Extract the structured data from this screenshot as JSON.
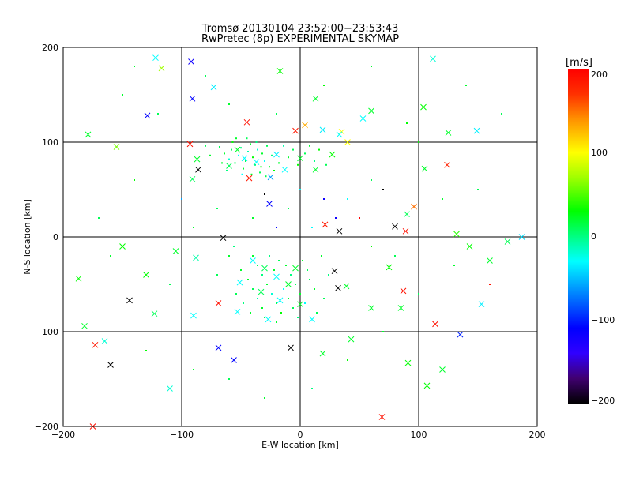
{
  "chart_data": {
    "type": "scatter",
    "title": "Tromsø 20130104 23:52:00−23:53:43",
    "subtitle": "RwPretec (8p) EXPERIMENTAL SKYMAP",
    "xlabel": "E-W location [km]",
    "ylabel": "N-S location [km]",
    "xlim": [
      -200,
      200
    ],
    "ylim": [
      -200,
      200
    ],
    "xticks": [
      "−200",
      "−100",
      "0",
      "100",
      "200"
    ],
    "yticks": [
      "−200",
      "−100",
      "0",
      "100",
      "200"
    ],
    "xtick_values": [
      -200,
      -100,
      0,
      100,
      200
    ],
    "ytick_values": [
      -200,
      -100,
      0,
      100,
      200
    ],
    "grid": true,
    "colorbar": {
      "label": "[m/s]",
      "range": [
        -200,
        200
      ],
      "ticks": [
        "200",
        "100",
        "0",
        "−100",
        "−200"
      ],
      "tick_values": [
        200,
        100,
        0,
        -100,
        -200
      ],
      "stops": [
        [
          -200,
          "#000000"
        ],
        [
          -170,
          "#400070"
        ],
        [
          -140,
          "#3000ff"
        ],
        [
          -110,
          "#0000ff"
        ],
        [
          -60,
          "#00a0ff"
        ],
        [
          -30,
          "#00ffff"
        ],
        [
          0,
          "#00ff80"
        ],
        [
          30,
          "#00ff00"
        ],
        [
          70,
          "#a0ff00"
        ],
        [
          100,
          "#ffff00"
        ],
        [
          140,
          "#ff9000"
        ],
        [
          170,
          "#ff3000"
        ],
        [
          200,
          "#ff0000"
        ]
      ]
    },
    "series": [
      {
        "name": "large markers (x, y, velocity)",
        "marker": "x",
        "points": [
          [
            -122,
            189,
            -30
          ],
          [
            -92,
            185,
            -120
          ],
          [
            -117,
            178,
            70
          ],
          [
            -129,
            128,
            -110
          ],
          [
            -91,
            146,
            -110
          ],
          [
            -73,
            158,
            -35
          ],
          [
            -179,
            108,
            20
          ],
          [
            -155,
            95,
            60
          ],
          [
            -93,
            98,
            190
          ],
          [
            -87,
            82,
            20
          ],
          [
            -86,
            71,
            -200
          ],
          [
            -91,
            61,
            10
          ],
          [
            -45,
            121,
            190
          ],
          [
            -4,
            112,
            185
          ],
          [
            4,
            118,
            130
          ],
          [
            19,
            113,
            -35
          ],
          [
            35,
            111,
            100
          ],
          [
            -43,
            62,
            185
          ],
          [
            -26,
            35,
            -110
          ],
          [
            -25,
            63,
            -60
          ],
          [
            0,
            83,
            20
          ],
          [
            80,
            11,
            -200
          ],
          [
            89,
            6,
            190
          ],
          [
            33,
            6,
            -200
          ],
          [
            21,
            13,
            185
          ],
          [
            105,
            72,
            20
          ],
          [
            90,
            24,
            10
          ],
          [
            112,
            188,
            -20
          ],
          [
            104,
            137,
            30
          ],
          [
            125,
            110,
            20
          ],
          [
            124,
            76,
            180
          ],
          [
            96,
            32,
            150
          ],
          [
            149,
            112,
            -35
          ],
          [
            187,
            0,
            -40
          ],
          [
            143,
            -10,
            30
          ],
          [
            132,
            3,
            40
          ],
          [
            -144,
            -67,
            -200
          ],
          [
            -173,
            -114,
            185
          ],
          [
            -160,
            -135,
            -200
          ],
          [
            -175,
            -200,
            190
          ],
          [
            -182,
            -94,
            20
          ],
          [
            -187,
            -44,
            30
          ],
          [
            -123,
            -81,
            10
          ],
          [
            -105,
            -15,
            20
          ],
          [
            -65,
            -1,
            -200
          ],
          [
            -88,
            -22,
            -10
          ],
          [
            -69,
            -70,
            190
          ],
          [
            -51,
            -48,
            -30
          ],
          [
            -69,
            -117,
            -110
          ],
          [
            -56,
            -130,
            -110
          ],
          [
            -8,
            -117,
            -200
          ],
          [
            29,
            -36,
            -200
          ],
          [
            32,
            -54,
            -200
          ],
          [
            39,
            -52,
            20
          ],
          [
            87,
            -57,
            190
          ],
          [
            114,
            -92,
            190
          ],
          [
            135,
            -103,
            -100
          ],
          [
            153,
            -71,
            -35
          ],
          [
            75,
            -32,
            30
          ],
          [
            85,
            -75,
            20
          ],
          [
            91,
            -133,
            30
          ],
          [
            107,
            -157,
            30
          ],
          [
            69,
            -190,
            190
          ],
          [
            19,
            -123,
            20
          ],
          [
            -4,
            -33,
            20
          ],
          [
            -17,
            -67,
            -30
          ],
          [
            -33,
            -58,
            10
          ],
          [
            0,
            -71,
            20
          ],
          [
            -40,
            -25,
            -30
          ],
          [
            -47,
            83,
            -30
          ],
          [
            -53,
            92,
            20
          ],
          [
            -37,
            79,
            -30
          ],
          [
            -60,
            75,
            10
          ],
          [
            -20,
            87,
            -35
          ],
          [
            -13,
            71,
            -30
          ],
          [
            13,
            71,
            20
          ],
          [
            27,
            87,
            30
          ],
          [
            40,
            100,
            100
          ],
          [
            53,
            125,
            -30
          ],
          [
            60,
            133,
            20
          ],
          [
            13,
            146,
            20
          ],
          [
            -17,
            175,
            30
          ],
          [
            33,
            108,
            -30
          ],
          [
            -90,
            -83,
            -30
          ],
          [
            -27,
            -87,
            -30
          ],
          [
            43,
            -108,
            20
          ],
          [
            60,
            -75,
            20
          ],
          [
            10,
            -87,
            -30
          ],
          [
            -53,
            -79,
            -30
          ],
          [
            -20,
            -42,
            -30
          ],
          [
            -10,
            -50,
            20
          ],
          [
            -30,
            -33,
            10
          ],
          [
            -150,
            -10,
            30
          ],
          [
            -165,
            -110,
            -20
          ],
          [
            160,
            -25,
            20
          ],
          [
            175,
            -5,
            10
          ],
          [
            120,
            -140,
            20
          ],
          [
            -110,
            -160,
            -20
          ],
          [
            -130,
            -40,
            30
          ]
        ]
      },
      {
        "name": "small markers (x, y, velocity)",
        "marker": "dot",
        "points": [
          [
            -68,
            95,
            10
          ],
          [
            -64,
            88,
            20
          ],
          [
            -60,
            82,
            -20
          ],
          [
            -57,
            100,
            30
          ],
          [
            -55,
            78,
            10
          ],
          [
            -52,
            86,
            -30
          ],
          [
            -50,
            94,
            0
          ],
          [
            -48,
            72,
            20
          ],
          [
            -46,
            80,
            10
          ],
          [
            -44,
            90,
            -10
          ],
          [
            -42,
            98,
            20
          ],
          [
            -40,
            84,
            30
          ],
          [
            -38,
            76,
            0
          ],
          [
            -36,
            92,
            -20
          ],
          [
            -34,
            68,
            10
          ],
          [
            -32,
            88,
            20
          ],
          [
            -30,
            80,
            -30
          ],
          [
            -28,
            96,
            10
          ],
          [
            -26,
            74,
            20
          ],
          [
            -24,
            86,
            0
          ],
          [
            -22,
            70,
            30
          ],
          [
            -66,
            78,
            20
          ],
          [
            -62,
            70,
            0
          ],
          [
            -58,
            92,
            10
          ],
          [
            -54,
            104,
            20
          ],
          [
            -49,
            66,
            -30
          ],
          [
            -45,
            104,
            10
          ],
          [
            -41,
            66,
            20
          ],
          [
            -37,
            100,
            0
          ],
          [
            -33,
            74,
            30
          ],
          [
            -29,
            64,
            10
          ],
          [
            -18,
            78,
            20
          ],
          [
            -14,
            96,
            -10
          ],
          [
            -10,
            84,
            20
          ],
          [
            -6,
            92,
            10
          ],
          [
            -2,
            76,
            30
          ],
          [
            4,
            88,
            10
          ],
          [
            8,
            96,
            20
          ],
          [
            12,
            80,
            0
          ],
          [
            16,
            92,
            30
          ],
          [
            22,
            76,
            10
          ],
          [
            -76,
            86,
            20
          ],
          [
            -80,
            96,
            10
          ],
          [
            -40,
            -20,
            20
          ],
          [
            -36,
            -30,
            10
          ],
          [
            -32,
            -40,
            0
          ],
          [
            -28,
            -50,
            20
          ],
          [
            -24,
            -60,
            -20
          ],
          [
            -20,
            -70,
            10
          ],
          [
            -16,
            -80,
            30
          ],
          [
            -12,
            -30,
            20
          ],
          [
            -8,
            -40,
            0
          ],
          [
            -4,
            -50,
            10
          ],
          [
            0,
            -60,
            20
          ],
          [
            4,
            -70,
            -30
          ],
          [
            8,
            -45,
            10
          ],
          [
            12,
            -55,
            20
          ],
          [
            -44,
            -45,
            20
          ],
          [
            -40,
            -55,
            10
          ],
          [
            -36,
            -65,
            -10
          ],
          [
            -32,
            -75,
            20
          ],
          [
            -26,
            -20,
            0
          ],
          [
            -22,
            -35,
            20
          ],
          [
            -18,
            -25,
            10
          ],
          [
            -14,
            -55,
            -30
          ],
          [
            -10,
            -65,
            20
          ],
          [
            -6,
            -75,
            10
          ],
          [
            -2,
            -85,
            0
          ],
          [
            2,
            -25,
            20
          ],
          [
            6,
            -35,
            10
          ],
          [
            -50,
            -35,
            20
          ],
          [
            -54,
            -60,
            10
          ],
          [
            -48,
            -70,
            0
          ],
          [
            -42,
            -80,
            20
          ],
          [
            -30,
            -85,
            10
          ],
          [
            -20,
            -90,
            20
          ],
          [
            14,
            -80,
            10
          ],
          [
            -60,
            -20,
            20
          ],
          [
            -70,
            -40,
            10
          ],
          [
            -56,
            -10,
            0
          ],
          [
            18,
            -20,
            20
          ],
          [
            20,
            -65,
            10
          ],
          [
            24,
            -40,
            0
          ],
          [
            -150,
            150,
            20
          ],
          [
            -120,
            130,
            10
          ],
          [
            -100,
            40,
            -60
          ],
          [
            -140,
            60,
            30
          ],
          [
            -170,
            20,
            10
          ],
          [
            -160,
            -20,
            20
          ],
          [
            -130,
            -120,
            30
          ],
          [
            -110,
            -50,
            10
          ],
          [
            -90,
            -140,
            20
          ],
          [
            -60,
            -150,
            10
          ],
          [
            -30,
            -170,
            20
          ],
          [
            10,
            -160,
            0
          ],
          [
            40,
            -130,
            30
          ],
          [
            70,
            -100,
            20
          ],
          [
            100,
            -60,
            10
          ],
          [
            130,
            -30,
            20
          ],
          [
            160,
            -50,
            190
          ],
          [
            150,
            50,
            10
          ],
          [
            120,
            40,
            20
          ],
          [
            90,
            120,
            30
          ],
          [
            60,
            60,
            10
          ],
          [
            40,
            40,
            -30
          ],
          [
            30,
            20,
            -120
          ],
          [
            50,
            20,
            200
          ],
          [
            70,
            50,
            -200
          ],
          [
            100,
            100,
            30
          ],
          [
            140,
            160,
            20
          ],
          [
            170,
            130,
            10
          ],
          [
            -60,
            140,
            20
          ],
          [
            -20,
            130,
            10
          ],
          [
            20,
            160,
            30
          ],
          [
            60,
            180,
            20
          ],
          [
            -80,
            170,
            10
          ],
          [
            -140,
            180,
            20
          ],
          [
            0,
            50,
            -30
          ],
          [
            -10,
            30,
            10
          ],
          [
            -40,
            20,
            20
          ],
          [
            10,
            10,
            -30
          ],
          [
            -70,
            30,
            10
          ],
          [
            -90,
            10,
            20
          ],
          [
            60,
            -10,
            30
          ],
          [
            80,
            -20,
            10
          ],
          [
            -20,
            10,
            -110
          ],
          [
            20,
            40,
            -120
          ],
          [
            -30,
            45,
            -200
          ]
        ]
      }
    ]
  }
}
